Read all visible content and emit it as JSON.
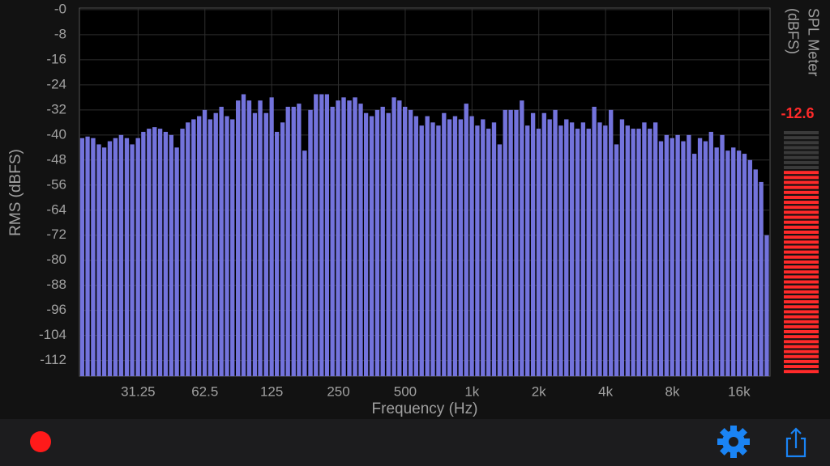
{
  "chart_data": {
    "type": "bar",
    "y_label": "RMS (dBFS)",
    "x_label": "Frequency (Hz)",
    "x": [
      17.5,
      18.5,
      19.6,
      20.8,
      22.0,
      23.3,
      24.7,
      26.2,
      27.8,
      29.4,
      31.2,
      33.0,
      35.0,
      37.1,
      39.3,
      41.6,
      44.1,
      46.7,
      49.5,
      52.4,
      55.6,
      58.9,
      62.4,
      66.1,
      70.0,
      74.2,
      78.6,
      83.2,
      88.2,
      93.4,
      99.0,
      105,
      111,
      118,
      125,
      132,
      140,
      148,
      157,
      166,
      176,
      187,
      198,
      210,
      222,
      235,
      249,
      264,
      280,
      297,
      315,
      333,
      353,
      374,
      396,
      420,
      445,
      471,
      499,
      529,
      560,
      593,
      629,
      666,
      706,
      748,
      792,
      839,
      889,
      942,
      998,
      1057,
      1120,
      1187,
      1257,
      1332,
      1411,
      1495,
      1584,
      1678,
      1778,
      1884,
      1996,
      2114,
      2240,
      2373,
      2514,
      2664,
      2822,
      2990,
      3168,
      3356,
      3556,
      3767,
      3991,
      4229,
      4480,
      4747,
      5029,
      5328,
      5645,
      5980,
      6336,
      6713,
      7112,
      7535,
      7983,
      8458,
      8961,
      9494,
      10058,
      10656,
      11290,
      11961,
      12672,
      13426,
      14224,
      15070,
      15966,
      16916,
      17921,
      18987,
      20116,
      21312
    ],
    "values": [
      -41,
      -40.5,
      -41,
      -43,
      -44,
      -42,
      -41,
      -40,
      -41,
      -43,
      -41,
      -39,
      -38,
      -37.5,
      -38,
      -39,
      -40,
      -44,
      -38,
      -36,
      -35,
      -34,
      -32,
      -35,
      -33,
      -31,
      -34,
      -35,
      -29,
      -27,
      -29,
      -33,
      -29,
      -33,
      -28,
      -39,
      -36,
      -31,
      -31,
      -30,
      -45,
      -32,
      -27,
      -27,
      -27,
      -31,
      -29,
      -28,
      -29,
      -28,
      -30,
      -33,
      -34,
      -32,
      -31,
      -33,
      -28,
      -29,
      -31,
      -32,
      -34,
      -37,
      -34,
      -36,
      -37,
      -33,
      -35,
      -34,
      -35,
      -30,
      -34,
      -37,
      -35,
      -38,
      -36,
      -43,
      -32,
      -32,
      -32,
      -29,
      -37,
      -33,
      -38,
      -33,
      -35,
      -32,
      -37,
      -35,
      -36,
      -38,
      -36,
      -38,
      -31,
      -36,
      -37,
      -32,
      -43,
      -35,
      -37,
      -38,
      -38,
      -36,
      -38,
      -36,
      -42,
      -40,
      -41,
      -40,
      -42,
      -40,
      -46,
      -41,
      -42,
      -39,
      -44,
      -40,
      -45,
      -44,
      -45,
      -46,
      -48,
      -51,
      -55,
      -72
    ],
    "color": "#7373dc",
    "log_x": true,
    "xlim": [
      17,
      22050
    ],
    "xticks": [
      31.25,
      62.5,
      125,
      250,
      500,
      {
        "value": 1000,
        "label": "1k"
      },
      {
        "value": 2000,
        "label": "2k"
      },
      {
        "value": 4000,
        "label": "4k"
      },
      {
        "value": 8000,
        "label": "8k"
      },
      {
        "value": 16000,
        "label": "16k"
      }
    ],
    "ylim": [
      -117,
      0.5
    ],
    "yticks": [
      {
        "value": 0,
        "label": "-0"
      },
      -8,
      -16,
      -24,
      -32,
      -40,
      -48,
      -56,
      -64,
      -72,
      -80,
      -88,
      -96,
      -104,
      -112
    ],
    "grid": true
  },
  "meter": {
    "title_lines": [
      "SPL Meter",
      "(dBFS)"
    ],
    "value": -12.6,
    "color": "#ff2a2a"
  }
}
